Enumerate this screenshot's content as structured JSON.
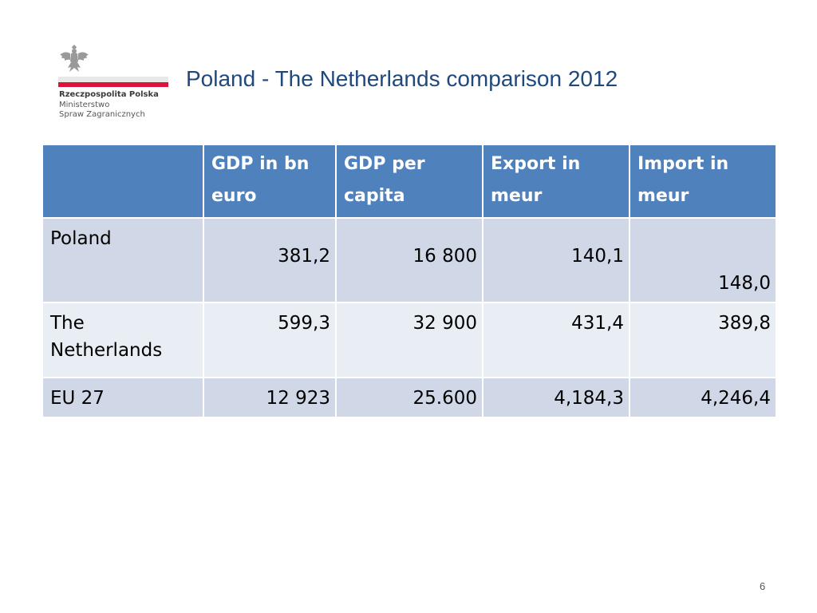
{
  "header": {
    "org_lines": [
      "Rzeczpospolita Polska",
      "Ministerstwo",
      "Spraw Zagranicznych"
    ],
    "title": "Poland - The Netherlands comparison 2012",
    "flag_colors": {
      "white": "#e9e9e9",
      "red": "#dc143c"
    }
  },
  "table": {
    "columns": [
      "",
      "GDP in bn euro",
      "GDP per capita",
      "Export in meur",
      "Import in meur"
    ],
    "rows": [
      {
        "label": "Poland",
        "values": [
          "381,2",
          "16 800",
          "140,1",
          "148,0"
        ]
      },
      {
        "label": "The Netherlands",
        "values": [
          "599,3",
          "32 900",
          "431,4",
          "389,8"
        ]
      },
      {
        "label": "EU 27",
        "values": [
          "12 923",
          "25.600",
          "4,184,3",
          "4,246,4"
        ]
      }
    ],
    "colors": {
      "header": "#4f81bd",
      "row_odd": "#d0d8e8",
      "row_even": "#e9edf4"
    }
  },
  "footer": {
    "page_number": "6"
  }
}
